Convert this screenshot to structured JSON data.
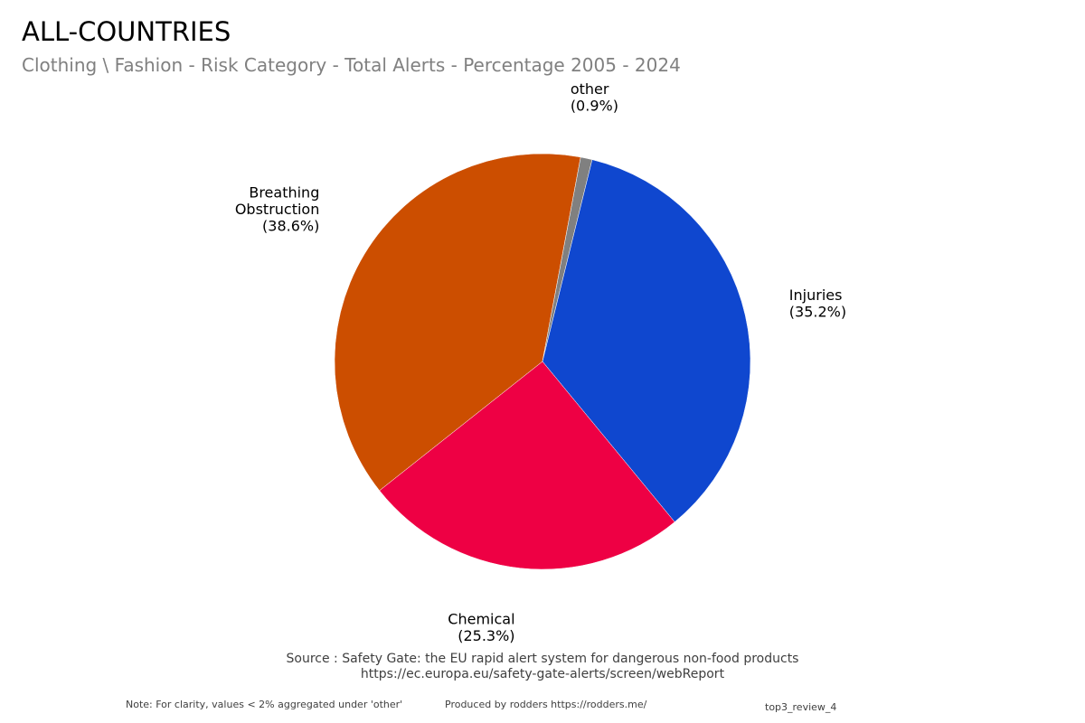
{
  "title": "ALL-COUNTRIES",
  "subtitle": "Clothing \\ Fashion - Risk Category - Total Alerts - Percentage 2005 - 2024",
  "chart_data": {
    "type": "pie",
    "title": "ALL-COUNTRIES",
    "subtitle": "Clothing \\ Fashion - Risk Category - Total Alerts - Percentage 2005 - 2024",
    "slices": [
      {
        "label": "Breathing Obstruction",
        "label_lines": [
          "Breathing",
          "Obstruction",
          "(38.6%)"
        ],
        "value": 38.6,
        "color": "#CC4E00"
      },
      {
        "label": "other",
        "label_lines": [
          "other",
          "(0.9%)"
        ],
        "value": 0.9,
        "color": "#808080"
      },
      {
        "label": "Injuries",
        "label_lines": [
          "Injuries",
          "(35.2%)"
        ],
        "value": 35.2,
        "color": "#0F47CF"
      },
      {
        "label": "Chemical",
        "label_lines": [
          "Chemical",
          "(25.3%)"
        ],
        "value": 25.3,
        "color": "#EE0044"
      }
    ],
    "unit": "%",
    "legend": "none (direct slice labels)"
  },
  "footer": {
    "source_line1": "Source : Safety Gate: the EU rapid alert system for dangerous non-food products",
    "source_line2": "https://ec.europa.eu/safety-gate-alerts/screen/webReport",
    "note": "Note: For clarity, values < 2% aggregated under 'other'",
    "produced_by": "Produced by rodders https://rodders.me/",
    "tag": "top3_review_4"
  }
}
